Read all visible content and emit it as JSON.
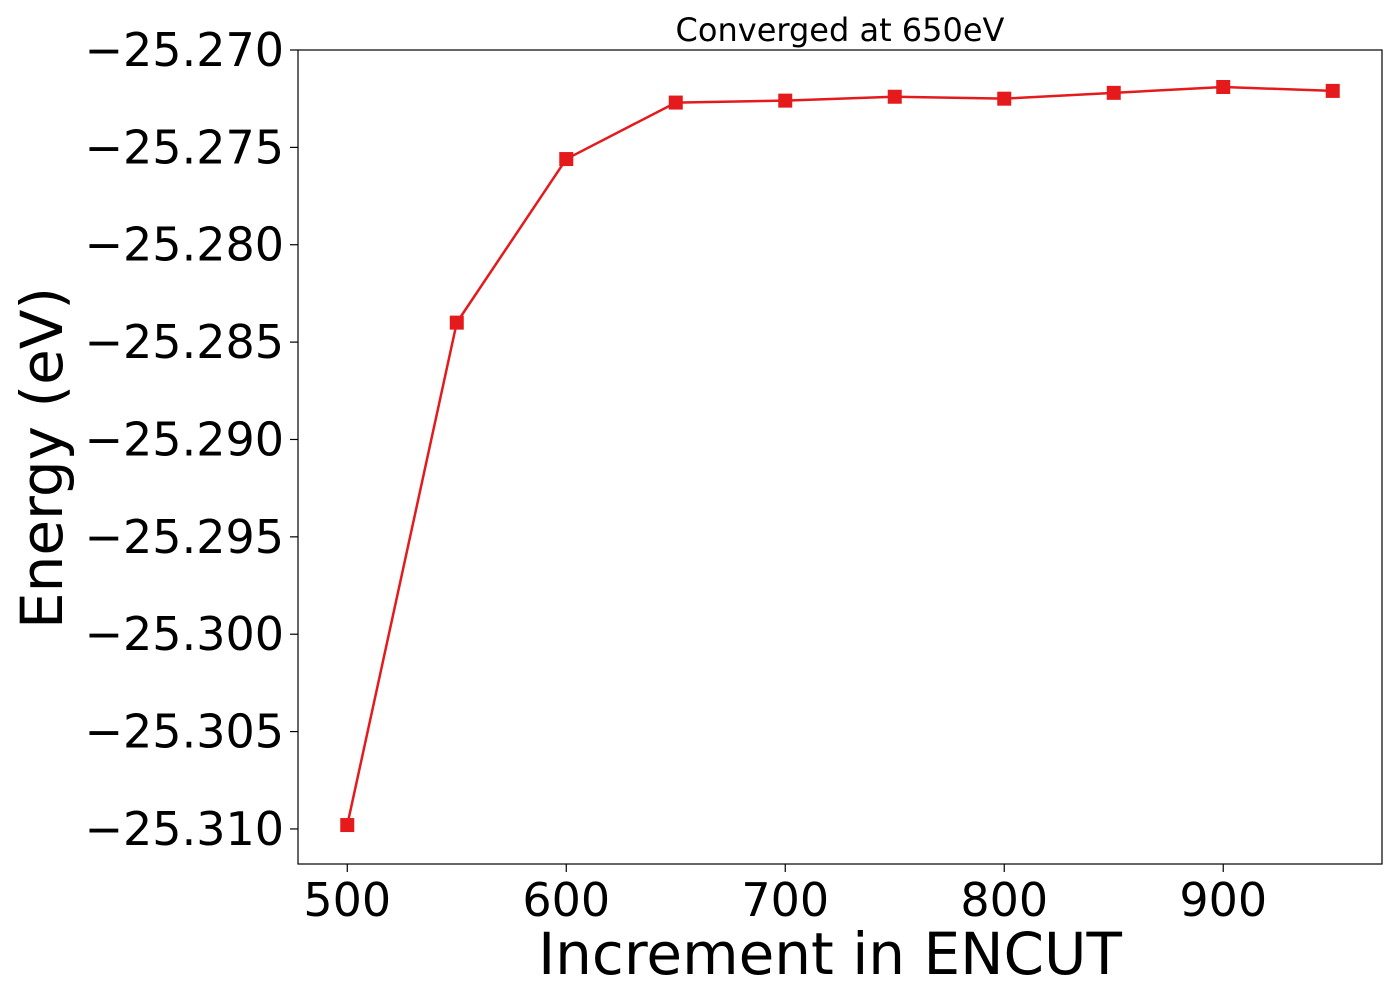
{
  "chart_data": {
    "type": "line",
    "title": "Converged at 650eV",
    "xlabel": "Increment in ENCUT",
    "ylabel": "Energy (eV)",
    "x": [
      500,
      550,
      600,
      650,
      700,
      750,
      800,
      850,
      900,
      950
    ],
    "series": [
      {
        "values": [
          -25.3098,
          -25.284,
          -25.2756,
          -25.2727,
          -25.2726,
          -25.2724,
          -25.2725,
          -25.2722,
          -25.2719,
          -25.2721
        ],
        "color": "#e41a1c",
        "marker": "square"
      }
    ],
    "xlim": [
      477.5,
      972.5
    ],
    "ylim": [
      -25.3118,
      -25.27
    ],
    "xticks": [
      500,
      600,
      700,
      800,
      900
    ],
    "xtick_labels": [
      "500",
      "600",
      "700",
      "800",
      "900"
    ],
    "yticks": [
      -25.27,
      -25.275,
      -25.28,
      -25.285,
      -25.29,
      -25.295,
      -25.3,
      -25.305,
      -25.31
    ],
    "ytick_labels": [
      "−25.270",
      "−25.275",
      "−25.280",
      "−25.285",
      "−25.290",
      "−25.295",
      "−25.300",
      "−25.305",
      "−25.310"
    ],
    "grid": false,
    "legend": "none"
  }
}
